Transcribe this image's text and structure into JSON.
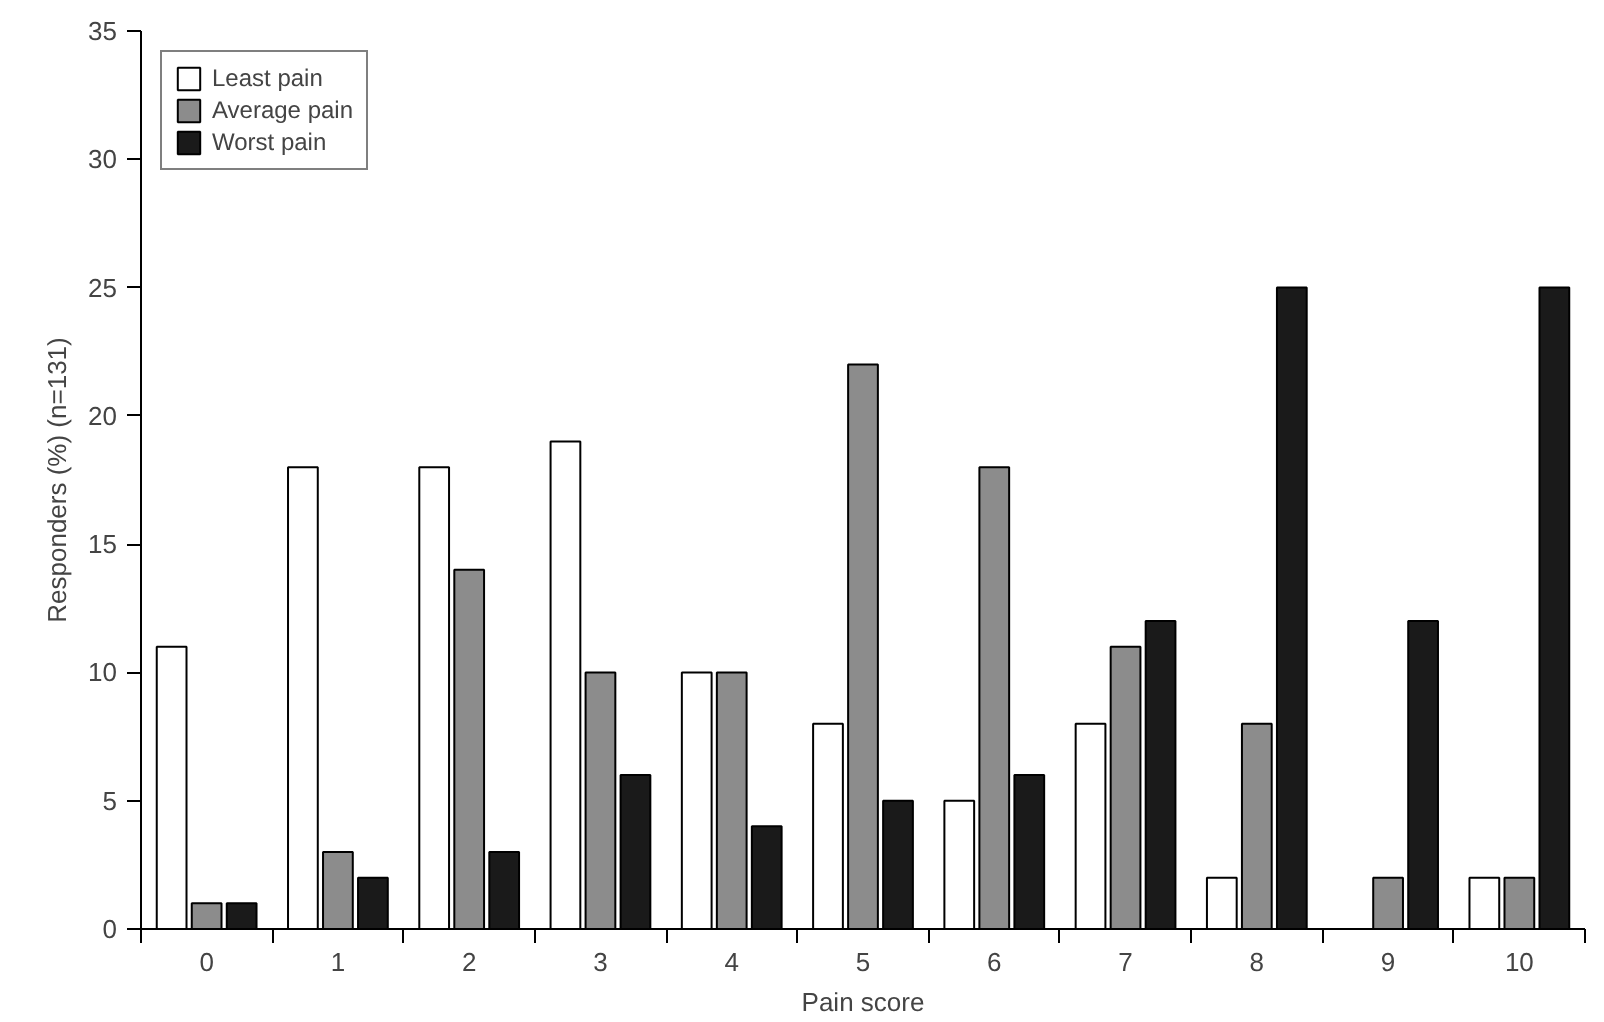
{
  "chart_data": {
    "type": "bar",
    "xlabel": "Pain score",
    "ylabel": "Responders (%) (n=131)",
    "categories": [
      "0",
      "1",
      "2",
      "3",
      "4",
      "5",
      "6",
      "7",
      "8",
      "9",
      "10"
    ],
    "series": [
      {
        "name": "Least pain",
        "color": "#ffffff",
        "values": [
          11,
          18,
          18,
          19,
          10,
          8,
          5,
          8,
          2,
          null,
          2
        ]
      },
      {
        "name": "Average pain",
        "color": "#8c8c8c",
        "values": [
          1,
          3,
          14,
          10,
          10,
          22,
          18,
          11,
          8,
          2,
          2
        ]
      },
      {
        "name": "Worst pain",
        "color": "#1a1a1a",
        "values": [
          1,
          2,
          3,
          6,
          4,
          5,
          6,
          12,
          25,
          12,
          25
        ]
      }
    ],
    "ylim": [
      0,
      35
    ],
    "yticks": [
      0,
      5,
      10,
      15,
      20,
      25,
      30,
      35
    ],
    "grid": false,
    "legend": "top left"
  }
}
